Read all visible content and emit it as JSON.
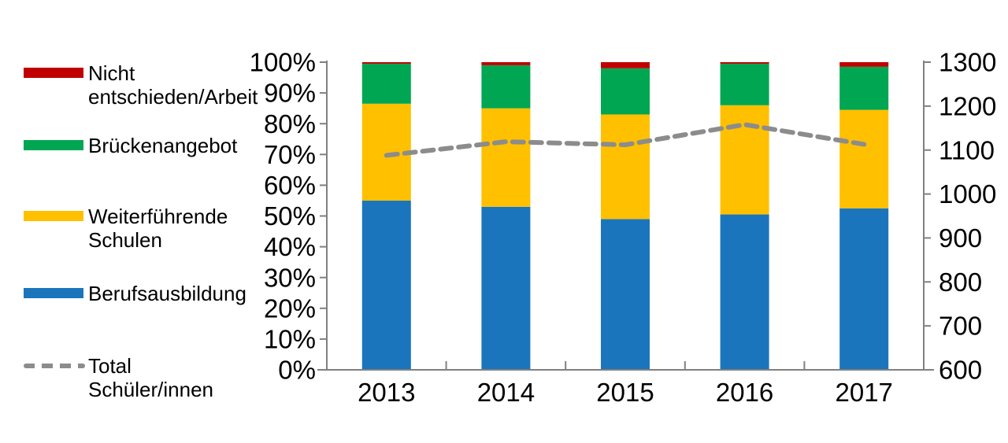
{
  "chart_data": {
    "type": "bar",
    "stacking": "percent",
    "title": "",
    "xlabel": "",
    "ylabel": "",
    "grid": false,
    "legend_position": "left",
    "categories": [
      "2013",
      "2014",
      "2015",
      "2016",
      "2017"
    ],
    "series": [
      {
        "name": "Berufsausbildung",
        "color": "#1B75BC",
        "values": [
          55,
          53,
          49,
          50.5,
          52.5
        ]
      },
      {
        "name": "Weiterführende Schulen",
        "color": "#FFC000",
        "values": [
          31.5,
          32,
          34,
          35.5,
          32
        ]
      },
      {
        "name": "Brückenangebot",
        "color": "#00A651",
        "values": [
          13,
          14,
          15,
          13.5,
          14
        ]
      },
      {
        "name": "Nicht entschieden/Arbeit",
        "color": "#C00000",
        "values": [
          0.5,
          1,
          2,
          0.5,
          1.5
        ]
      }
    ],
    "line_series": {
      "name": "Total Schüler/innen",
      "color": "#8C8C8C",
      "style": "dashed",
      "axis": "right",
      "values": [
        1088,
        1119,
        1112,
        1158,
        1113
      ]
    },
    "axes": {
      "left": {
        "min": 0,
        "max": 100,
        "ticks": [
          "100%",
          "90%",
          "80%",
          "70%",
          "60%",
          "50%",
          "40%",
          "30%",
          "20%",
          "10%",
          "0%"
        ]
      },
      "right": {
        "min": 600,
        "max": 1300,
        "ticks": [
          "1300",
          "1200",
          "1100",
          "1000",
          "900",
          "800",
          "700",
          "600"
        ]
      },
      "x": {
        "ticks": [
          "2013",
          "2014",
          "2015",
          "2016",
          "2017"
        ]
      }
    }
  },
  "legend": {
    "items": [
      {
        "label": "Nicht\nentschieden/Arbeit",
        "color": "#C00000",
        "type": "box",
        "name": "nicht-entschieden-arbeit"
      },
      {
        "label": "Brückenangebot",
        "color": "#00A651",
        "type": "box",
        "name": "brueckenangebot"
      },
      {
        "label": "Weiterführende\nSchulen",
        "color": "#FFC000",
        "type": "box",
        "name": "weiterfuehrende-schulen"
      },
      {
        "label": "Berufsausbildung",
        "color": "#1B75BC",
        "type": "box",
        "name": "berufsausbildung"
      },
      {
        "label": "Total\nSchüler/innen",
        "color": "#8C8C8C",
        "type": "dash",
        "name": "total-schueler-innen"
      }
    ]
  }
}
